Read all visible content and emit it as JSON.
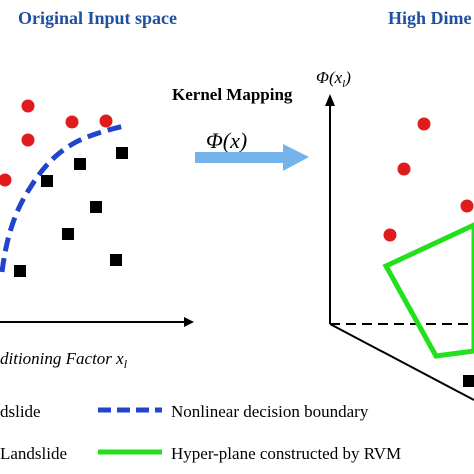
{
  "left_panel": {
    "title": "Original Input space",
    "x_axis_label": "ditioning Factor x",
    "x_axis_subscript": "l"
  },
  "right_panel": {
    "title": "High Dime",
    "axis_label": "Φ(x",
    "axis_subscript": "l",
    "axis_label_close": ")"
  },
  "mapping": {
    "label": "Kernel Mapping",
    "formula": "Φ(x)",
    "arrow_color": "#74b4ea"
  },
  "legend": {
    "items": [
      {
        "label": "dslide",
        "marker": "red-dot"
      },
      {
        "label": "Nonlinear decision boundary",
        "marker": "blue-dashed-line"
      },
      {
        "label": "Landslide",
        "marker": "black-square"
      },
      {
        "label": "Hyper-plane constructed by RVM",
        "marker": "green-line"
      }
    ]
  },
  "colors": {
    "landslide_point": "#e01b1b",
    "non_landslide_point": "#000000",
    "boundary": "#2244cc",
    "hyperplane": "#22e01b"
  }
}
